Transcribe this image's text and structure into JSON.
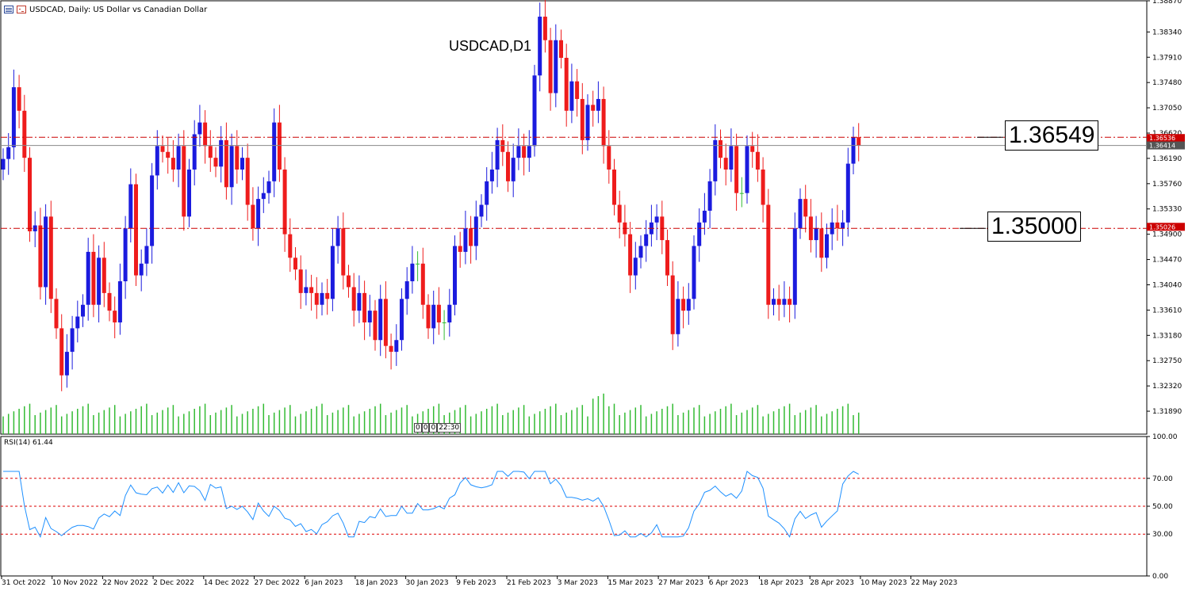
{
  "header": {
    "instrument_line": "USDCAD, Daily:  US Dollar vs Canadian Dollar",
    "icons": [
      "menu-icon",
      "chart-icon"
    ]
  },
  "title": "USDCAD,D1",
  "rsi_label": "RSI(14) 61.44",
  "session_marks": [
    "0",
    "0",
    "0",
    "22:30"
  ],
  "level_labels": {
    "upper": "1.36549",
    "lower": "1.35000"
  },
  "price_tags": {
    "upper": "1.36536",
    "last": "1.36414",
    "lower": "1.35026"
  },
  "colors": {
    "bull": "#1b1bde",
    "bear": "#ee1c1c",
    "doji": "#33bb33",
    "volume": "#33bb33",
    "level_line": "#cc0000",
    "rsi_line": "#1e90ff",
    "rsi_level": "#dd0000"
  },
  "chart_data": [
    {
      "type": "candlestick",
      "title": "USDCAD,D1",
      "ylim": [
        1.315,
        1.3887
      ],
      "y_ticks": [
        "1.38870",
        "1.38340",
        "1.37910",
        "1.37480",
        "1.37050",
        "1.36620",
        "1.36190",
        "1.35760",
        "1.35330",
        "1.34900",
        "1.34470",
        "1.34040",
        "1.33610",
        "1.33180",
        "1.32750",
        "1.32320",
        "1.31890"
      ],
      "x_ticks": [
        "31 Oct 2022",
        "10 Nov 2022",
        "22 Nov 2022",
        "2 Dec 2022",
        "14 Dec 2022",
        "27 Dec 2022",
        "6 Jan 2023",
        "18 Jan 2023",
        "30 Jan 2023",
        "9 Feb 2023",
        "21 Feb 2023",
        "3 Mar 2023",
        "15 Mar 2023",
        "27 Mar 2023",
        "6 Apr 2023",
        "18 Apr 2023",
        "28 Apr 2023",
        "10 May 2023",
        "22 May 2023"
      ],
      "closes": [
        1.3618,
        1.3638,
        1.374,
        1.37,
        1.362,
        1.3495,
        1.3505,
        1.34,
        1.352,
        1.338,
        1.333,
        1.325,
        1.329,
        1.333,
        1.335,
        1.337,
        1.346,
        1.337,
        1.345,
        1.339,
        1.336,
        1.334,
        1.341,
        1.35,
        1.3575,
        1.342,
        1.344,
        1.347,
        1.359,
        1.364,
        1.363,
        1.362,
        1.36,
        1.364,
        1.352,
        1.36,
        1.366,
        1.368,
        1.364,
        1.362,
        1.3605,
        1.365,
        1.357,
        1.364,
        1.36,
        1.362,
        1.354,
        1.35,
        1.355,
        1.356,
        1.358,
        1.368,
        1.36,
        1.349,
        1.345,
        1.343,
        1.339,
        1.34,
        1.339,
        1.337,
        1.339,
        1.338,
        1.347,
        1.35,
        1.342,
        1.34,
        1.336,
        1.339,
        1.334,
        1.336,
        1.331,
        1.338,
        1.33,
        1.329,
        1.331,
        1.338,
        1.341,
        1.344,
        1.344,
        1.337,
        1.333,
        1.337,
        1.334,
        1.334,
        1.337,
        1.347,
        1.346,
        1.35,
        1.347,
        1.352,
        1.354,
        1.358,
        1.36,
        1.365,
        1.363,
        1.358,
        1.362,
        1.364,
        1.362,
        1.364,
        1.376,
        1.386,
        1.382,
        1.373,
        1.382,
        1.379,
        1.37,
        1.375,
        1.372,
        1.365,
        1.371,
        1.37,
        1.372,
        1.364,
        1.36,
        1.354,
        1.351,
        1.349,
        1.342,
        1.345,
        1.347,
        1.349,
        1.351,
        1.352,
        1.348,
        1.342,
        1.332,
        1.338,
        1.336,
        1.338,
        1.347,
        1.351,
        1.353,
        1.358,
        1.365,
        1.362,
        1.36,
        1.364,
        1.356,
        1.356,
        1.364,
        1.363,
        1.36,
        1.354,
        1.337,
        1.338,
        1.337,
        1.338,
        1.337,
        1.35,
        1.355,
        1.352,
        1.348,
        1.35,
        1.345,
        1.349,
        1.351,
        1.35,
        1.351,
        1.361,
        1.3655,
        1.3641
      ],
      "rsi": {
        "name": "RSI(14)",
        "last": 61.44,
        "ylim": [
          0,
          100
        ],
        "y_ticks": [
          "100.00",
          "70.00",
          "50.00",
          "30.00",
          "0.00"
        ],
        "levels": [
          70,
          50,
          30
        ]
      },
      "levels": [
        1.36549,
        1.35
      ]
    }
  ]
}
